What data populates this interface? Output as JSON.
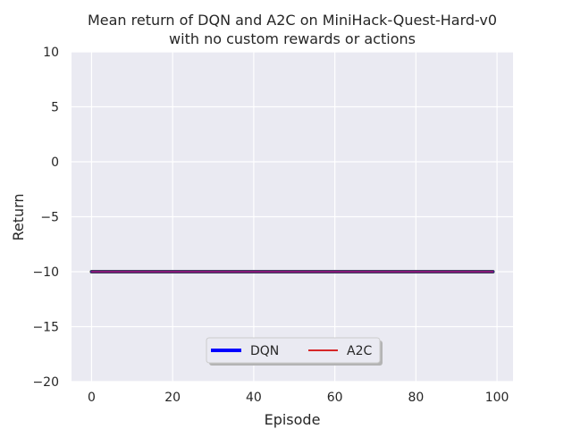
{
  "chart_data": {
    "type": "line",
    "title": [
      "Mean return of DQN and A2C on MiniHack-Quest-Hard-v0",
      "with no custom rewards or actions"
    ],
    "xlabel": "Episode",
    "ylabel": "Return",
    "xlim": [
      -4.95,
      103.95
    ],
    "ylim": [
      -20,
      10
    ],
    "xticks": [
      0,
      20,
      40,
      60,
      80,
      100
    ],
    "yticks": [
      10,
      5,
      0,
      -5,
      -10,
      -15,
      -20
    ],
    "xtick_labels": [
      "0",
      "20",
      "40",
      "60",
      "80",
      "100"
    ],
    "ytick_labels": [
      "10",
      "5",
      "0",
      "−5",
      "−10",
      "−15",
      "−20"
    ],
    "grid": true,
    "legend_position": "lower center",
    "x": {
      "start": 0,
      "end": 99
    },
    "series": [
      {
        "name": "DQN",
        "color": "#0000ff",
        "value": -10
      },
      {
        "name": "A2C",
        "color": "#d62728",
        "value": -10
      }
    ]
  },
  "colors": {
    "plot_background": "#eaeaf2",
    "grid": "#ffffff",
    "text": "#262626"
  }
}
